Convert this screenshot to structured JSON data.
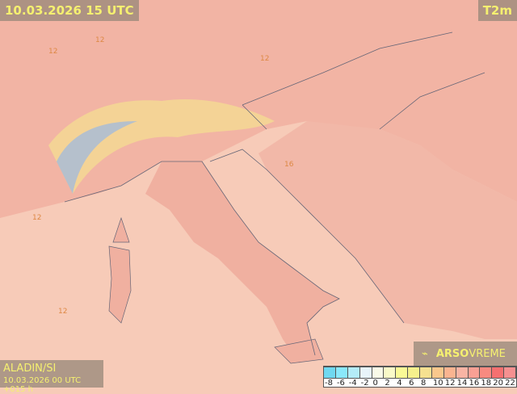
{
  "header": {
    "valid_time": "10.03.2026 15 UTC",
    "variable": "T2m"
  },
  "footer": {
    "model": "ALADIN/SI",
    "run": "10.03.2026 00 UTC +015 h",
    "brand_bold": "ARSO",
    "brand_light": "VREME",
    "brand_icon": "satellite-dish-icon"
  },
  "legend": {
    "labels": [
      "-8",
      "-6",
      "-4",
      "-2",
      "0",
      "2",
      "4",
      "6",
      "8",
      "10",
      "12",
      "14",
      "16",
      "18",
      "20",
      "22"
    ],
    "colors": [
      "#6fd8f0",
      "#8ae8fa",
      "#b4ecf8",
      "#e8f4fa",
      "#fafae8",
      "#fafac8",
      "#fafa96",
      "#f5f08c",
      "#f5e090",
      "#fac88c",
      "#fab490",
      "#f8b4a4",
      "#f8a094",
      "#f88a80",
      "#f57070",
      "#f59090"
    ]
  },
  "colors": {
    "sea": "#f7cbb8",
    "land": "#f2b6a4",
    "warm_low": "#f5e090",
    "alps_cold": "#8ab4f0"
  },
  "map_labels": [
    "12",
    "12",
    "12",
    "16",
    "12",
    "12"
  ]
}
